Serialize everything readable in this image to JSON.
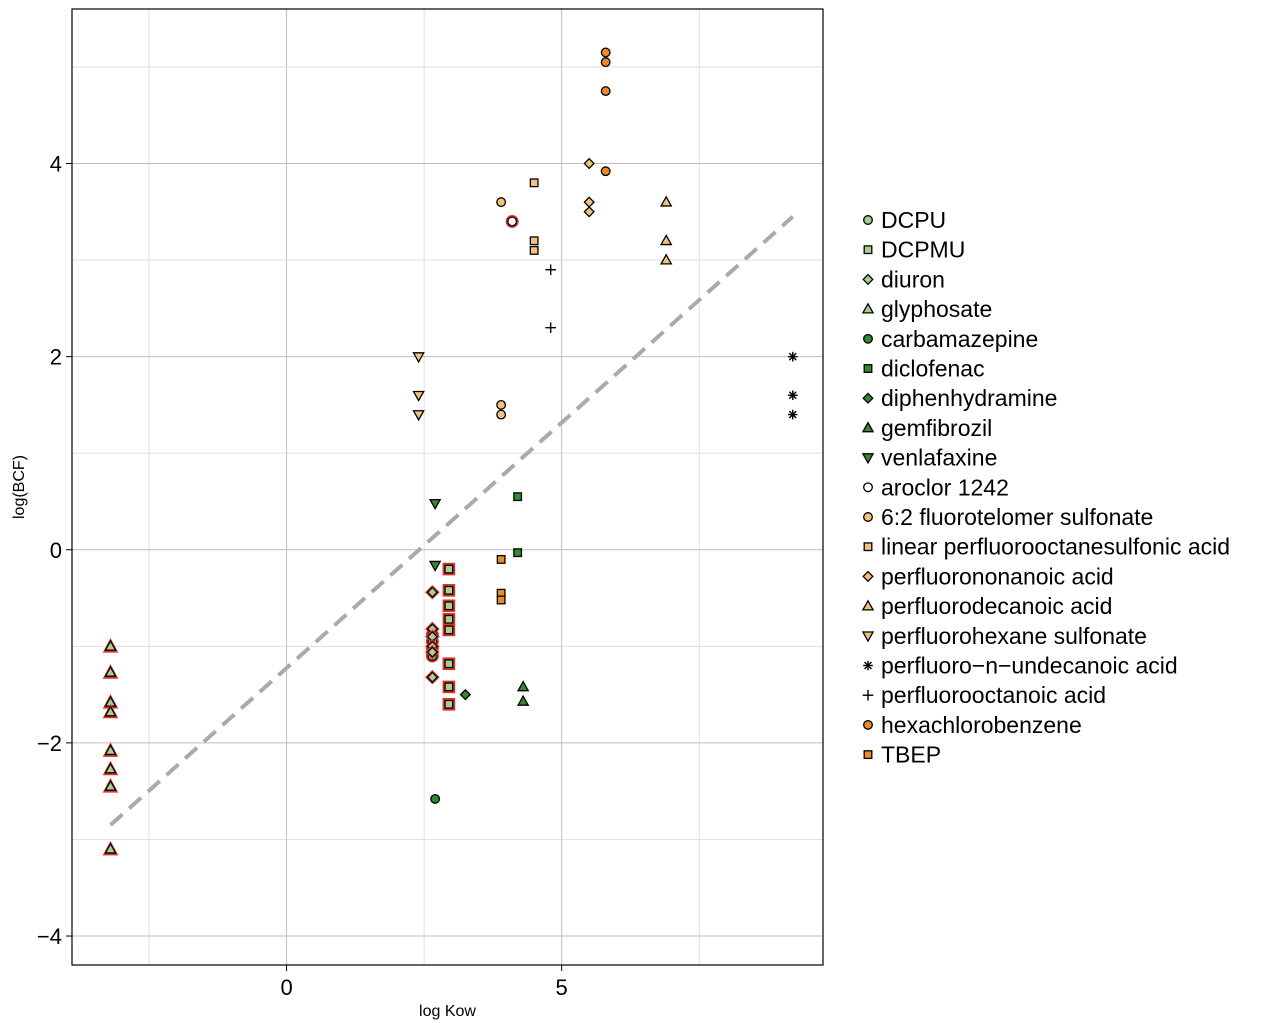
{
  "chart_data": {
    "type": "scatter",
    "title": "",
    "xlabel": "log Kow",
    "ylabel": "log(BCF)",
    "xlim": [
      -3.9,
      9.75
    ],
    "ylim": [
      -4.3,
      5.6
    ],
    "xticks": [
      0,
      5
    ],
    "xtick_labels": [
      "0",
      "5"
    ],
    "yticks": [
      -4,
      -2,
      0,
      2,
      4
    ],
    "ytick_labels": [
      "−4",
      "−2",
      "0",
      "2",
      "4"
    ],
    "grid": true,
    "legend_position": "right",
    "reference_line": {
      "style": "dashed",
      "color": "#aaaaaa",
      "x": [
        -3.2,
        9.2
      ],
      "y": [
        -2.85,
        3.45
      ]
    },
    "colors": {
      "light_green": "#a8d08d",
      "green": "#2e8b2e",
      "light_orange": "#f6c07a",
      "orange": "#f08a1e",
      "highlight_red": "#e0302a",
      "black": "#000000"
    },
    "series": [
      {
        "name": "DCPU",
        "marker": "circle",
        "color": "#a8d08d",
        "highlight": true,
        "points": [
          [
            2.65,
            -0.88
          ],
          [
            2.65,
            -0.95
          ],
          [
            2.65,
            -1.02
          ],
          [
            2.65,
            -1.1
          ]
        ]
      },
      {
        "name": "DCPMU",
        "marker": "square",
        "color": "#a8d08d",
        "highlight": true,
        "points": [
          [
            2.95,
            -0.2
          ],
          [
            2.95,
            -0.42
          ],
          [
            2.95,
            -0.58
          ],
          [
            2.95,
            -0.72
          ],
          [
            2.95,
            -0.83
          ],
          [
            2.95,
            -1.18
          ],
          [
            2.95,
            -1.42
          ],
          [
            2.95,
            -1.6
          ]
        ]
      },
      {
        "name": "diuron",
        "marker": "diamond",
        "color": "#a8d08d",
        "highlight": true,
        "points": [
          [
            2.65,
            -0.44
          ],
          [
            2.65,
            -0.82
          ],
          [
            2.65,
            -0.9
          ],
          [
            2.65,
            -1.0
          ],
          [
            2.65,
            -1.06
          ],
          [
            2.65,
            -1.32
          ]
        ]
      },
      {
        "name": "glyphosate",
        "marker": "triangle-up",
        "color": "#a8d08d",
        "highlight": true,
        "points": [
          [
            -3.2,
            -1.0
          ],
          [
            -3.2,
            -1.27
          ],
          [
            -3.2,
            -1.58
          ],
          [
            -3.2,
            -1.68
          ],
          [
            -3.2,
            -2.08
          ],
          [
            -3.2,
            -2.27
          ],
          [
            -3.2,
            -2.45
          ],
          [
            -3.2,
            -3.1
          ]
        ]
      },
      {
        "name": "carbamazepine",
        "marker": "circle",
        "color": "#2e8b2e",
        "highlight": false,
        "points": [
          [
            2.7,
            -2.58
          ]
        ]
      },
      {
        "name": "diclofenac",
        "marker": "square",
        "color": "#2e8b2e",
        "highlight": false,
        "points": [
          [
            4.2,
            0.55
          ],
          [
            4.2,
            -0.03
          ]
        ]
      },
      {
        "name": "diphenhydramine",
        "marker": "diamond",
        "color": "#2e8b2e",
        "highlight": false,
        "points": [
          [
            3.25,
            -1.5
          ]
        ]
      },
      {
        "name": "gemfibrozil",
        "marker": "triangle-up",
        "color": "#2e8b2e",
        "highlight": false,
        "points": [
          [
            4.3,
            -1.42
          ],
          [
            4.3,
            -1.57
          ]
        ]
      },
      {
        "name": "venlafaxine",
        "marker": "triangle-down",
        "color": "#2e8b2e",
        "highlight": false,
        "points": [
          [
            2.7,
            0.48
          ],
          [
            2.7,
            -0.16
          ]
        ]
      },
      {
        "name": "aroclor 1242",
        "marker": "circle",
        "color": "#ffffff",
        "highlight": true,
        "points": [
          [
            4.1,
            3.4
          ]
        ]
      },
      {
        "name": "6:2 fluorotelomer sulfonate",
        "marker": "circle",
        "color": "#f6c07a",
        "highlight": false,
        "points": [
          [
            3.9,
            3.6
          ],
          [
            3.9,
            1.5
          ],
          [
            3.9,
            1.4
          ]
        ]
      },
      {
        "name": "linear perfluorooctanesulfonic acid",
        "marker": "square",
        "color": "#f6c07a",
        "highlight": false,
        "points": [
          [
            4.5,
            3.8
          ],
          [
            4.5,
            3.2
          ],
          [
            4.5,
            3.1
          ]
        ]
      },
      {
        "name": "perfluorononanoic acid",
        "marker": "diamond",
        "color": "#f6c07a",
        "highlight": false,
        "points": [
          [
            5.5,
            4.0
          ],
          [
            5.5,
            3.6
          ],
          [
            5.5,
            3.5
          ]
        ]
      },
      {
        "name": "perfluorodecanoic acid",
        "marker": "triangle-up",
        "color": "#f6c07a",
        "highlight": false,
        "points": [
          [
            6.9,
            3.6
          ],
          [
            6.9,
            3.2
          ],
          [
            6.9,
            3.0
          ]
        ]
      },
      {
        "name": "perfluorohexane sulfonate",
        "marker": "triangle-down",
        "color": "#f6c07a",
        "highlight": false,
        "points": [
          [
            2.4,
            2.0
          ],
          [
            2.4,
            1.6
          ],
          [
            2.4,
            1.4
          ]
        ]
      },
      {
        "name": "perfluoro−n−undecanoic acid",
        "marker": "asterisk",
        "color": "#000000",
        "highlight": false,
        "points": [
          [
            9.2,
            2.0
          ],
          [
            9.2,
            1.6
          ],
          [
            9.2,
            1.4
          ]
        ]
      },
      {
        "name": "perfluorooctanoic acid",
        "marker": "plus",
        "color": "#000000",
        "highlight": false,
        "points": [
          [
            4.8,
            2.9
          ],
          [
            4.8,
            2.3
          ]
        ]
      },
      {
        "name": "hexachlorobenzene",
        "marker": "circle",
        "color": "#f08a1e",
        "highlight": false,
        "points": [
          [
            5.8,
            5.15
          ],
          [
            5.8,
            5.05
          ],
          [
            5.8,
            4.75
          ],
          [
            5.8,
            3.92
          ]
        ]
      },
      {
        "name": "TBEP",
        "marker": "square",
        "color": "#f08a1e",
        "highlight": false,
        "points": [
          [
            3.9,
            -0.1
          ],
          [
            3.9,
            -0.45
          ],
          [
            3.9,
            -0.52
          ]
        ]
      }
    ]
  }
}
